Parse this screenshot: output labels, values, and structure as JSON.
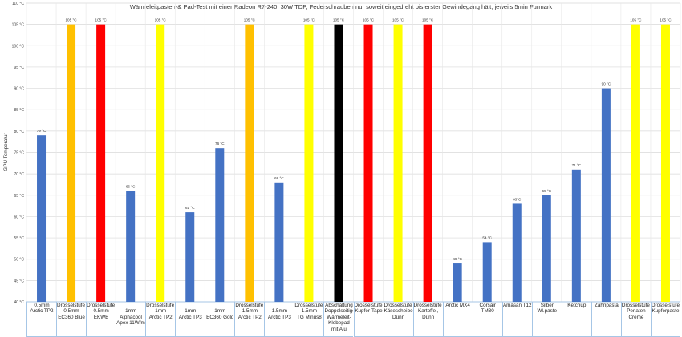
{
  "chart_data": {
    "type": "bar",
    "title": "Wärmeleitpasten-& Pad-Test mit einer Radeon R7-240, 30W TDP, Federschrauben nur soweit eingedreht bis erster Gewindegang hält, jeweils 5min Furmark",
    "ylabel": "GPU Temperatur",
    "ylim": [
      40,
      110
    ],
    "ytick_step": 5,
    "ytick_labels": [
      "40 °C",
      "45 °C",
      "50 °C",
      "55 °C",
      "60 °C",
      "65 °C",
      "70 °C",
      "75 °C",
      "80 °C",
      "85 °C",
      "90 °C",
      "95 °C",
      "100 °C",
      "105 °C",
      "110 °C"
    ],
    "grid": true,
    "legend": "none",
    "categories": [
      [
        "0.5mm",
        "Arctic TP2"
      ],
      [
        "Drosselstufe 2",
        "0.5mm",
        "EC360 Blue"
      ],
      [
        "Drosselstufe 3",
        "0.5mm",
        "EKWB"
      ],
      [
        "",
        "1mm",
        "Alphacool",
        "Apex 11W/mk"
      ],
      [
        "Drosselstufe 1",
        "1mm",
        "Arctic TP2"
      ],
      [
        "",
        "1mm",
        "Arctic TP3"
      ],
      [
        "",
        "1mm",
        "EC360 Gold"
      ],
      [
        "Drosselstufe 2",
        "1.5mm",
        "Arctic TP2"
      ],
      [
        "",
        "1.5mm",
        "Arctic TP3"
      ],
      [
        "Drosselstufe 1",
        "1.5mm",
        "TG Minus8"
      ],
      [
        "Abschaltung",
        "Doppelseitiges",
        "Wärmeleit-",
        "Klebepad",
        "mit Alu"
      ],
      [
        "Drosselstufe 3",
        "Kupfer-Tape"
      ],
      [
        "Drosselstufe 1",
        "Käsescheibe,",
        "Dünn"
      ],
      [
        "Drosselstufe 3",
        "Kartoffel,",
        "Dünn"
      ],
      [
        "Arctic MX4"
      ],
      [
        "Corsair",
        "TM30"
      ],
      [
        "Amasan T12"
      ],
      [
        "Silber",
        "Wl.paste"
      ],
      [
        "Ketchup"
      ],
      [
        "Zahnpasta"
      ],
      [
        "Drosselstufe 1",
        "Penaten",
        "Creme"
      ],
      [
        "Drosselstufe 1",
        "Kupferpaste"
      ]
    ],
    "values": [
      79,
      105,
      105,
      66,
      105,
      61,
      76,
      105,
      68,
      105,
      105,
      105,
      105,
      105,
      49,
      54,
      63,
      65,
      71,
      90,
      105,
      105
    ],
    "value_labels": [
      "79 °C",
      "105 °C",
      "105 °C",
      "66 °C",
      "105 °C",
      "61 °C",
      "76 °C",
      "105 °C",
      "68 °C",
      "105 °C",
      "105 °C",
      "105 °C",
      "105 °C",
      "105 °C",
      "49 °C",
      "54 °C",
      "63°C",
      "65 °C",
      "71 °C",
      "90 °C",
      "105 °C",
      "105 °C"
    ],
    "colors": [
      "#4472c4",
      "#ffc000",
      "#ff0000",
      "#4472c4",
      "#ffff00",
      "#4472c4",
      "#4472c4",
      "#ffc000",
      "#4472c4",
      "#ffff00",
      "#000000",
      "#ff0000",
      "#ffff00",
      "#ff0000",
      "#4472c4",
      "#4472c4",
      "#4472c4",
      "#4472c4",
      "#4472c4",
      "#4472c4",
      "#ffff00",
      "#ffff00"
    ]
  }
}
